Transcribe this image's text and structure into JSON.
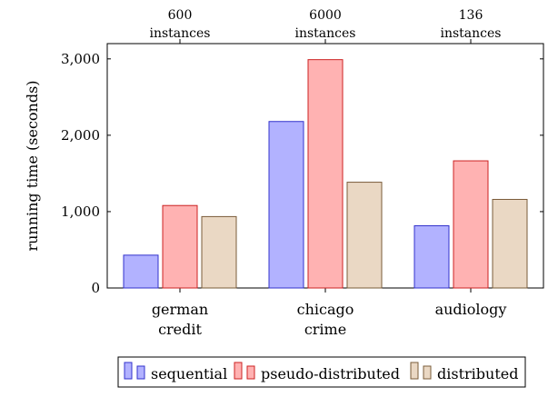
{
  "chart_data": {
    "type": "bar",
    "ylabel": "running time (seconds)",
    "ylim": [
      0,
      3200
    ],
    "yticks": [
      0,
      1000,
      2000,
      3000
    ],
    "ytick_labels": [
      "0",
      "1,000",
      "2,000",
      "3,000"
    ],
    "categories": [
      [
        "german",
        "credit"
      ],
      [
        "chicago",
        "crime"
      ],
      [
        "audiology"
      ]
    ],
    "top_labels": [
      [
        "600",
        "instances"
      ],
      [
        "6000",
        "instances"
      ],
      [
        "136",
        "instances"
      ]
    ],
    "series": [
      {
        "name": "sequential",
        "values": [
          430,
          2180,
          815
        ],
        "fill": "#b2b2ff",
        "stroke": "#3333cc"
      },
      {
        "name": "pseudo-distributed",
        "values": [
          1080,
          2990,
          1665
        ],
        "fill": "#ffb2b2",
        "stroke": "#cc2222"
      },
      {
        "name": "distributed",
        "values": [
          935,
          1385,
          1160
        ],
        "fill": "#ead8c4",
        "stroke": "#7a5c3a"
      }
    ],
    "legend_position": "bottom",
    "grid": false
  }
}
